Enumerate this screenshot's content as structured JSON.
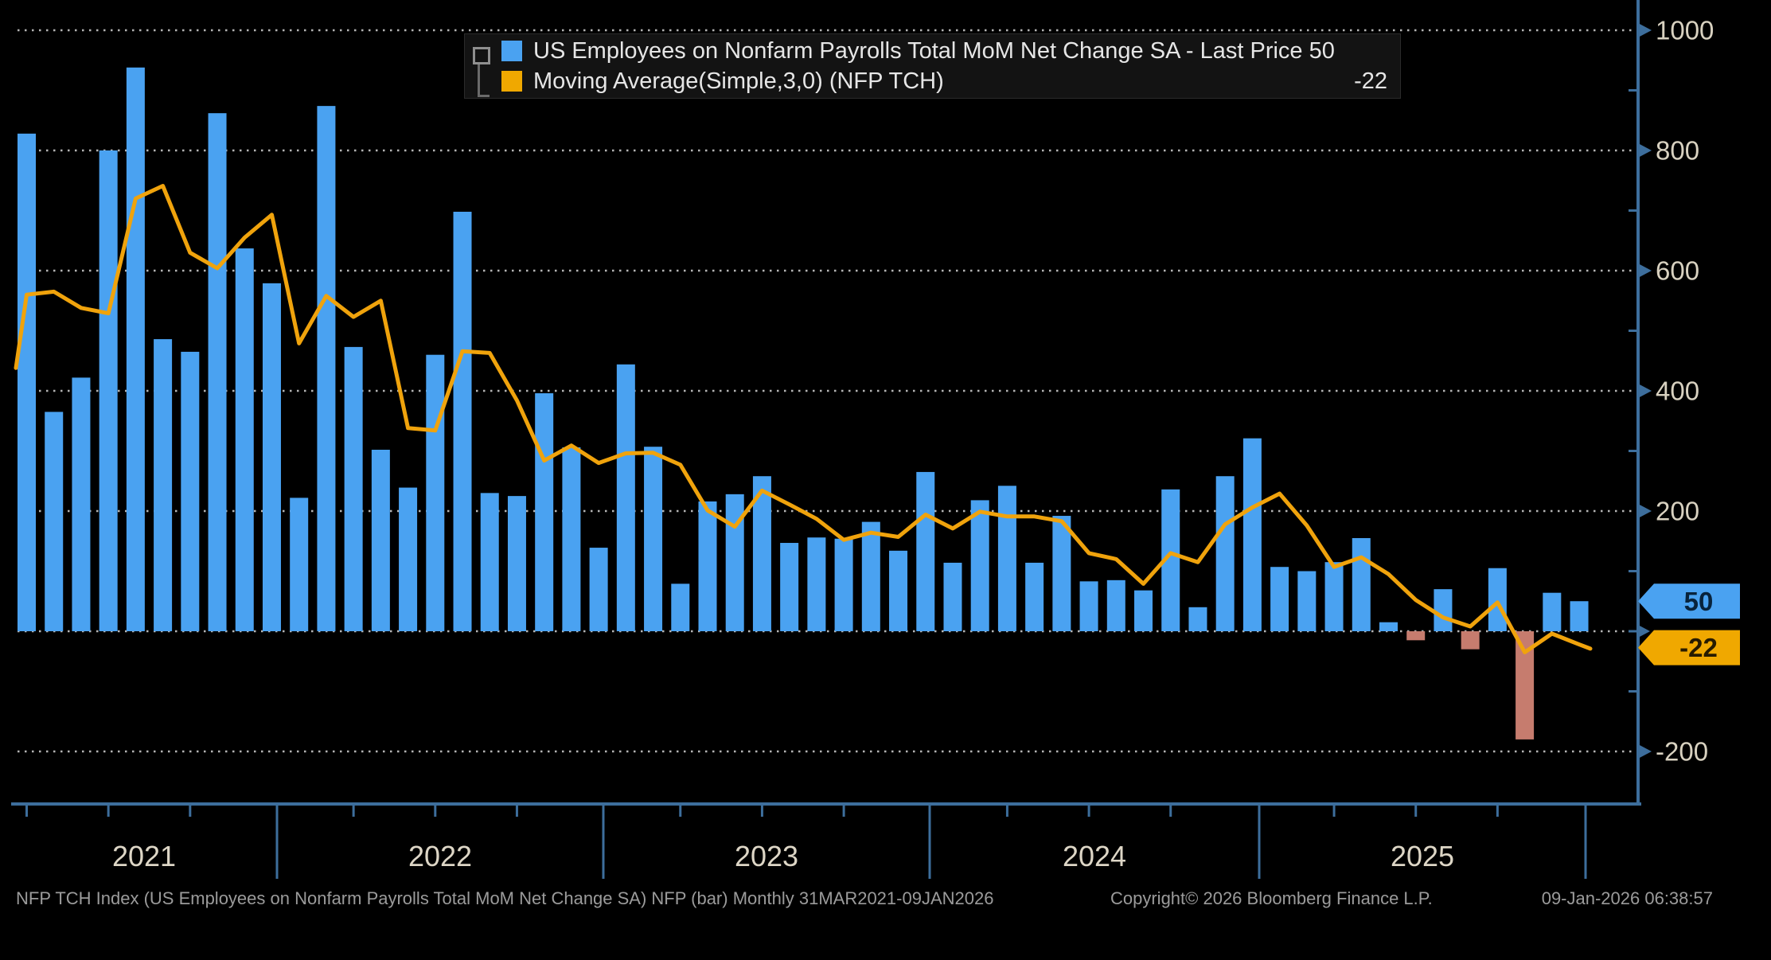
{
  "legend": {
    "items": [
      {
        "label": "US Employees on Nonfarm Payrolls Total MoM Net Change SA - Last Price 50",
        "swatch_color": "#4aa2f1"
      },
      {
        "label": "Moving Average(Simple,3,0) (NFP TCH)",
        "value": "-22",
        "swatch_color": "#f0a800"
      }
    ]
  },
  "footer": {
    "left": "NFP TCH Index (US Employees on Nonfarm Payrolls Total MoM Net Change SA) NFP (bar) Monthly 31MAR2021-09JAN2026",
    "center": "Copyright© 2026 Bloomberg Finance L.P.",
    "right": "09-Jan-2026 06:38:57"
  },
  "colors": {
    "background": "#000000",
    "bar_positive": "#4aa2f1",
    "bar_negative": "#c67c6e",
    "ma_line": "#f0a30c",
    "axis": "#3d6e9c",
    "gridline": "#b5b5b5",
    "tick_text": "#d8d1c0",
    "year_text": "#ddd6c6",
    "badge_blue_text": "#08233c",
    "badge_orange_text": "#271b00"
  },
  "chart_data": {
    "type": "bar",
    "title": "US Employees on Nonfarm Payrolls Total MoM Net Change SA",
    "period": "Monthly 31MAR2021-09JAN2026",
    "last_price": 50,
    "ma_last_value": -22,
    "months": [
      "2021-03",
      "2021-04",
      "2021-05",
      "2021-06",
      "2021-07",
      "2021-08",
      "2021-09",
      "2021-10",
      "2021-11",
      "2021-12",
      "2022-01",
      "2022-02",
      "2022-03",
      "2022-04",
      "2022-05",
      "2022-06",
      "2022-07",
      "2022-08",
      "2022-09",
      "2022-10",
      "2022-11",
      "2022-12",
      "2023-01",
      "2023-02",
      "2023-03",
      "2023-04",
      "2023-05",
      "2023-06",
      "2023-07",
      "2023-08",
      "2023-09",
      "2023-10",
      "2023-11",
      "2023-12",
      "2024-01",
      "2024-02",
      "2024-03",
      "2024-04",
      "2024-05",
      "2024-06",
      "2024-07",
      "2024-08",
      "2024-09",
      "2024-10",
      "2024-11",
      "2024-12",
      "2025-01",
      "2025-02",
      "2025-03",
      "2025-04",
      "2025-05",
      "2025-06",
      "2025-07",
      "2025-08",
      "2025-09",
      "2025-10",
      "2025-11",
      "2025-12"
    ],
    "series": [
      {
        "name": "NFP TCH net change (bar)",
        "values": [
          828,
          365,
          422,
          800,
          938,
          486,
          465,
          862,
          637,
          579,
          222,
          874,
          473,
          302,
          239,
          460,
          698,
          230,
          225,
          396,
          306,
          139,
          444,
          307,
          79,
          216,
          228,
          258,
          147,
          156,
          154,
          182,
          134,
          265,
          114,
          218,
          242,
          114,
          192,
          83,
          85,
          68,
          236,
          40,
          258,
          321,
          107,
          100,
          115,
          155,
          15,
          -15,
          70,
          -30,
          105,
          -180,
          64,
          50
        ]
      },
      {
        "name": "Moving Average(Simple,3,0)",
        "values": [
          560,
          565,
          538,
          529,
          720,
          741,
          630,
          604,
          655,
          693,
          479,
          558,
          523,
          550,
          338,
          334,
          466,
          463,
          384,
          284,
          309,
          280,
          296,
          297,
          277,
          201,
          174,
          234,
          211,
          187,
          152,
          164,
          157,
          194,
          171,
          199,
          191,
          191,
          183,
          130,
          120,
          79,
          130,
          115,
          178,
          206,
          229,
          176,
          107,
          123,
          95,
          52,
          23,
          8,
          48,
          -35,
          -4,
          -22
        ],
        "edge_start_value": 438,
        "edge_end_value": -29
      }
    ],
    "y_axis": {
      "side": "right",
      "ylim": [
        -320,
        1050
      ],
      "gridlines": [
        1000,
        800,
        600,
        400,
        200,
        0,
        -200
      ],
      "labeled_ticks": [
        {
          "value": 1000,
          "label": "1000"
        },
        {
          "value": 800,
          "label": "800"
        },
        {
          "value": 600,
          "label": "600"
        },
        {
          "value": 400,
          "label": "400"
        },
        {
          "value": 200,
          "label": "200"
        },
        {
          "value": -200,
          "label": "-200"
        }
      ],
      "minor_ticks": [
        900,
        700,
        500,
        300,
        100,
        0,
        -100
      ]
    },
    "x_axis": {
      "year_labels": [
        "2021",
        "2022",
        "2023",
        "2024",
        "2025"
      ]
    },
    "badges": [
      {
        "label": "50",
        "series": "last-price",
        "color": "#4aa2f1",
        "text_color": "#08233c",
        "value": 50
      },
      {
        "label": "-22",
        "series": "moving-average",
        "color": "#f0a800",
        "text_color": "#271b00",
        "value": -22
      }
    ],
    "legend_position": "top-center",
    "grid": "dotted-horizontal"
  }
}
